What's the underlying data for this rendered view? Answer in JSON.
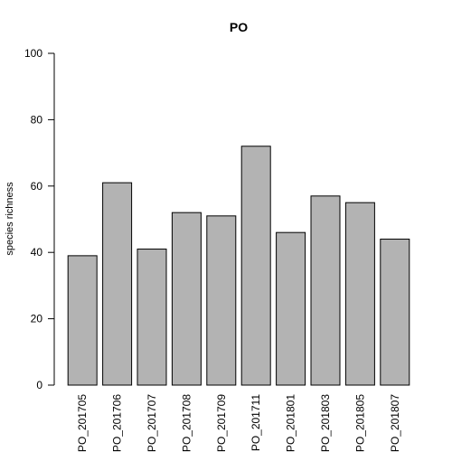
{
  "chart_data": {
    "type": "bar",
    "title": "PO",
    "xlabel": "",
    "ylabel": "species richness",
    "categories": [
      "PO_201705",
      "PO_201706",
      "PO_201707",
      "PO_201708",
      "PO_201709",
      "PO_201711",
      "PO_201801",
      "PO_201803",
      "PO_201805",
      "PO_201807"
    ],
    "values": [
      39,
      61,
      41,
      52,
      51,
      72,
      46,
      57,
      55,
      44
    ],
    "ylim": [
      0,
      100
    ],
    "yticks": [
      0,
      20,
      40,
      60,
      80,
      100
    ],
    "grid": false,
    "bar_color": "#b3b3b3",
    "bar_edge_color": "#000000"
  }
}
